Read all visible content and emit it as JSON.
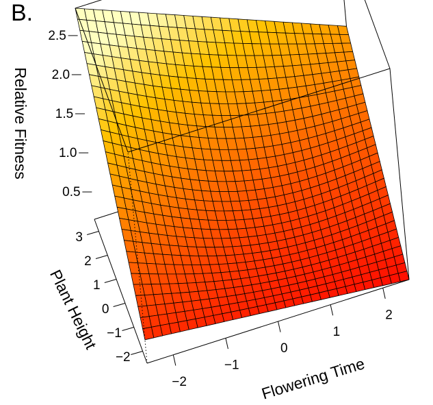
{
  "panel_label": "B.",
  "chart_data": {
    "type": "surface",
    "grid": 30,
    "colormap": "heat",
    "axes": {
      "x": {
        "label": "Flowering Time",
        "range": [
          -2.5,
          2.5
        ],
        "ticks": [
          -2,
          -1,
          0,
          1,
          2
        ]
      },
      "y": {
        "label": "Plant Height",
        "range": [
          -2.5,
          3.5
        ],
        "ticks": [
          -2,
          -1,
          0,
          1,
          2,
          3
        ]
      },
      "z": {
        "label": "Relative Fitness",
        "range": [
          0.15,
          2.85
        ],
        "ticks": [
          0.5,
          1.0,
          1.5,
          2.0,
          2.5
        ]
      }
    },
    "corners": [
      {
        "x": -2.5,
        "y": -2.5,
        "z": 0.45
      },
      {
        "x": 2.5,
        "y": -2.5,
        "z": 0.15
      },
      {
        "x": -2.5,
        "y": 3.5,
        "z": 2.85
      },
      {
        "x": 2.5,
        "y": 3.5,
        "z": 1.55
      }
    ]
  }
}
